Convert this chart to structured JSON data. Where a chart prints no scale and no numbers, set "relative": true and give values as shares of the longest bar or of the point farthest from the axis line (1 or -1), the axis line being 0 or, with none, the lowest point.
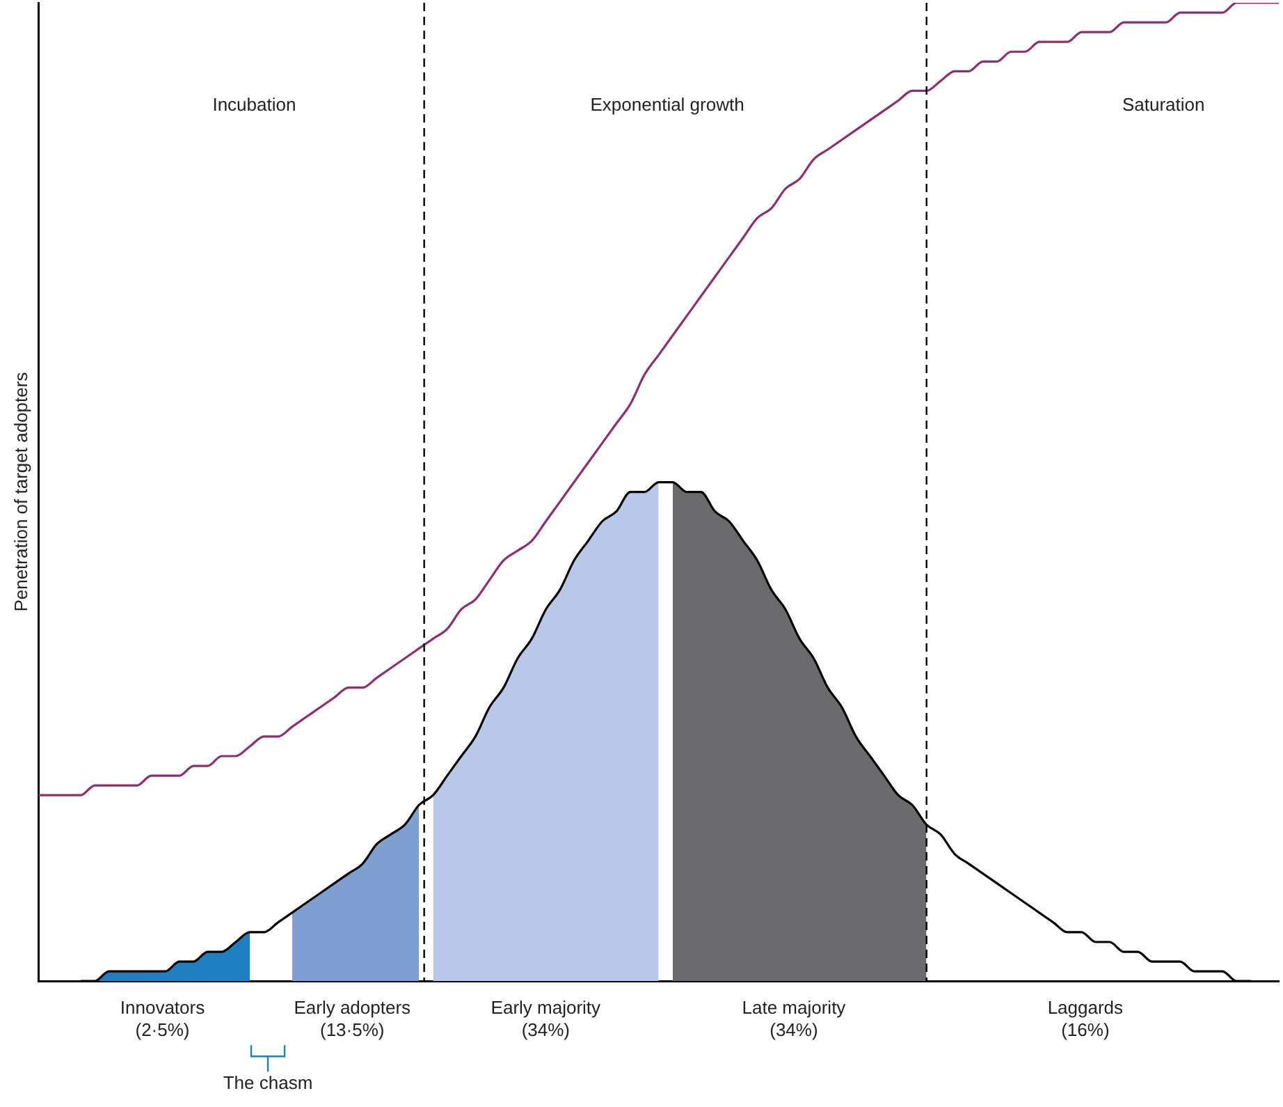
{
  "chart_data": {
    "type": "line",
    "relative": true,
    "ylabel": "Penetration of target adopters",
    "grid": false,
    "legend": false,
    "marker": "none",
    "categories": [
      null,
      null,
      null,
      null,
      null,
      null,
      null,
      null,
      null,
      null,
      null,
      null,
      null,
      null,
      null,
      null,
      null,
      null,
      null,
      null,
      null,
      null,
      null,
      null,
      null,
      null,
      null,
      null,
      null,
      null,
      null,
      null,
      null,
      null,
      null,
      null,
      null,
      null,
      null,
      null,
      null,
      null,
      null,
      null,
      null,
      null,
      null,
      null,
      null,
      null,
      null,
      null,
      null,
      null,
      null,
      null,
      null,
      null,
      null,
      null,
      null,
      null,
      null,
      null,
      null,
      null,
      null,
      null,
      null,
      null,
      null,
      null,
      null,
      null,
      null,
      null,
      null,
      null,
      null,
      null,
      null,
      null,
      null,
      null,
      null,
      null,
      null,
      null,
      null
    ],
    "series": [
      {
        "type": "area",
        "color": "#1f7fc0",
        "values": [
          null,
          null,
          null,
          0,
          0,
          0.01,
          0.01,
          0.01,
          0.01,
          0.01,
          0.02,
          0.02,
          0.03,
          0.03,
          0.04,
          0.05,
          null,
          null,
          null,
          null,
          null,
          null,
          null,
          null,
          null,
          null,
          null,
          null,
          null,
          null,
          null,
          null,
          null,
          null,
          null,
          null,
          null,
          null,
          null,
          null,
          null,
          null,
          null,
          null,
          null,
          null,
          null,
          null,
          null,
          null,
          null,
          null,
          null,
          null,
          null,
          null,
          null,
          null,
          null,
          null,
          null,
          null,
          null,
          null,
          null,
          null,
          null,
          null,
          null,
          null,
          null,
          null,
          null,
          null,
          null,
          null,
          null,
          null,
          null,
          null,
          null,
          null,
          null,
          null,
          null,
          null,
          null,
          null,
          null
        ]
      },
      {
        "type": "area",
        "color": "#7f9fd3",
        "values": [
          null,
          null,
          null,
          null,
          null,
          null,
          null,
          null,
          null,
          null,
          null,
          null,
          null,
          null,
          null,
          null,
          null,
          null,
          0.07,
          0.08,
          0.09,
          0.1,
          0.11,
          0.12,
          0.14,
          0.15,
          0.16,
          0.18,
          null,
          null,
          null,
          null,
          null,
          null,
          null,
          null,
          null,
          null,
          null,
          null,
          null,
          null,
          null,
          null,
          null,
          null,
          null,
          null,
          null,
          null,
          null,
          null,
          null,
          null,
          null,
          null,
          null,
          null,
          null,
          null,
          null,
          null,
          null,
          null,
          null,
          null,
          null,
          null,
          null,
          null,
          null,
          null,
          null,
          null,
          null,
          null,
          null,
          null,
          null,
          null,
          null,
          null,
          null,
          null,
          null,
          null,
          null,
          null,
          null
        ]
      },
      {
        "type": "area",
        "color": "#b9c8e8",
        "values": [
          null,
          null,
          null,
          null,
          null,
          null,
          null,
          null,
          null,
          null,
          null,
          null,
          null,
          null,
          null,
          null,
          null,
          null,
          null,
          null,
          null,
          null,
          null,
          null,
          null,
          null,
          null,
          null,
          0.19,
          0.21,
          0.23,
          0.25,
          0.28,
          0.3,
          0.33,
          0.35,
          0.38,
          0.4,
          0.43,
          0.45,
          0.47,
          0.48,
          0.5,
          0.5,
          0.51,
          null,
          null,
          null,
          null,
          null,
          null,
          null,
          null,
          null,
          null,
          null,
          null,
          null,
          null,
          null,
          null,
          null,
          null,
          null,
          null,
          null,
          null,
          null,
          null,
          null,
          null,
          null,
          null,
          null,
          null,
          null,
          null,
          null,
          null,
          null,
          null,
          null,
          null,
          null,
          null,
          null,
          null,
          null,
          null
        ]
      },
      {
        "type": "area",
        "color": "#6b6b6d",
        "values": [
          null,
          null,
          null,
          null,
          null,
          null,
          null,
          null,
          null,
          null,
          null,
          null,
          null,
          null,
          null,
          null,
          null,
          null,
          null,
          null,
          null,
          null,
          null,
          null,
          null,
          null,
          null,
          null,
          null,
          null,
          null,
          null,
          null,
          null,
          null,
          null,
          null,
          null,
          null,
          null,
          null,
          null,
          null,
          null,
          null,
          0.51,
          0.5,
          0.5,
          0.48,
          0.47,
          0.45,
          0.43,
          0.4,
          0.38,
          0.35,
          0.33,
          0.3,
          0.28,
          0.25,
          0.23,
          0.21,
          0.19,
          0.18,
          0.16,
          null,
          null,
          null,
          null,
          null,
          null,
          null,
          null,
          null,
          null,
          null,
          null,
          null,
          null,
          null,
          null,
          null,
          null,
          null,
          null,
          null,
          null,
          null,
          null,
          null
        ]
      },
      {
        "color": "#000000",
        "values": [
          null,
          null,
          null,
          0,
          0,
          0.01,
          0.01,
          0.01,
          0.01,
          0.01,
          0.02,
          0.02,
          0.03,
          0.03,
          0.04,
          0.05,
          0.05,
          0.06,
          0.07,
          0.08,
          0.09,
          0.1,
          0.11,
          0.12,
          0.14,
          0.15,
          0.16,
          0.18,
          0.19,
          0.21,
          0.23,
          0.25,
          0.28,
          0.3,
          0.33,
          0.35,
          0.38,
          0.4,
          0.43,
          0.45,
          0.47,
          0.48,
          0.5,
          0.5,
          0.51,
          0.51,
          0.5,
          0.5,
          0.48,
          0.47,
          0.45,
          0.43,
          0.4,
          0.38,
          0.35,
          0.33,
          0.3,
          0.28,
          0.25,
          0.23,
          0.21,
          0.19,
          0.18,
          0.16,
          0.15,
          0.13,
          0.12,
          0.11,
          0.1,
          0.09,
          0.08,
          0.07,
          0.06,
          0.05,
          0.05,
          0.04,
          0.04,
          0.03,
          0.03,
          0.02,
          0.02,
          0.02,
          0.01,
          0.01,
          0.01,
          0,
          0,
          null,
          null
        ]
      },
      {
        "color": "#8e2f6d",
        "values": [
          0.19,
          0.19,
          0.19,
          0.19,
          0.2,
          0.2,
          0.2,
          0.2,
          0.21,
          0.21,
          0.21,
          0.22,
          0.22,
          0.23,
          0.23,
          0.24,
          0.25,
          0.25,
          0.26,
          0.27,
          0.28,
          0.29,
          0.3,
          0.3,
          0.31,
          0.32,
          0.33,
          0.34,
          0.35,
          0.36,
          0.38,
          0.39,
          0.41,
          0.43,
          0.44,
          0.45,
          0.47,
          0.49,
          0.51,
          0.53,
          0.55,
          0.57,
          0.59,
          0.62,
          0.64,
          0.66,
          0.68,
          0.7,
          0.72,
          0.74,
          0.76,
          0.78,
          0.79,
          0.81,
          0.82,
          0.84,
          0.85,
          0.86,
          0.87,
          0.88,
          0.89,
          0.9,
          0.91,
          0.91,
          0.92,
          0.93,
          0.93,
          0.94,
          0.94,
          0.95,
          0.95,
          0.96,
          0.96,
          0.96,
          0.97,
          0.97,
          0.97,
          0.98,
          0.98,
          0.98,
          0.98,
          0.99,
          0.99,
          0.99,
          0.99,
          1,
          1,
          1,
          1
        ]
      }
    ],
    "annotations": [
      "Incubation",
      "Exponential growth",
      "Saturation",
      "Innovators\n(2·5%)",
      "Early adopters\n(13·5%)",
      "Early majority\n(34%)",
      "Late majority\n(34%)",
      "Laggards\n(16%)",
      "The chasm"
    ]
  }
}
